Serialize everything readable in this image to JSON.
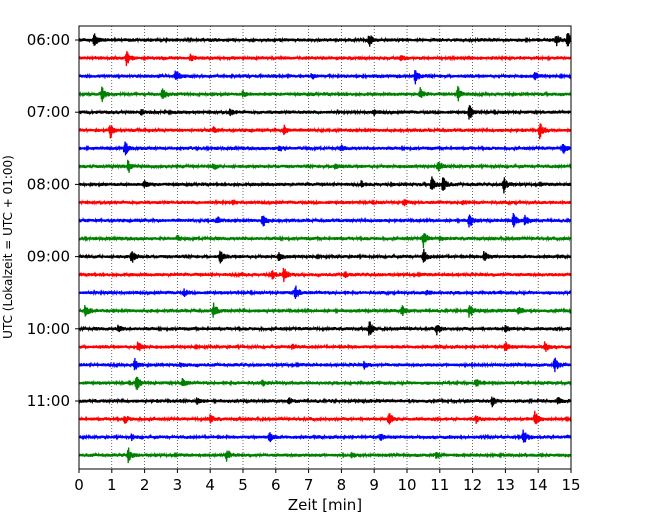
{
  "chart_data": {
    "type": "line",
    "title": "",
    "xlabel": "Zeit  [min]",
    "ylabel": "UTC (Lokalzeit = UTC + 01:00)",
    "xlim": [
      0,
      15
    ],
    "x_ticks": [
      "0",
      "1",
      "2",
      "3",
      "4",
      "5",
      "6",
      "7",
      "8",
      "9",
      "10",
      "11",
      "12",
      "13",
      "14",
      "15"
    ],
    "y_tick_labels": [
      "06:00",
      "07:00",
      "08:00",
      "09:00",
      "10:00",
      "11:00"
    ],
    "trace_interval_minutes": 15,
    "start_time": "06:00",
    "vertical_grid": true,
    "trace_colors": [
      "#000000",
      "#ff0000",
      "#0000ff",
      "#008000"
    ],
    "series": [
      {
        "time": "06:00",
        "events": [
          [
            0.45,
            1.0
          ],
          [
            8.85,
            0.8
          ],
          [
            14.55,
            0.7
          ],
          [
            14.9,
            1.0
          ]
        ]
      },
      {
        "time": "06:15",
        "events": [
          [
            1.45,
            0.9
          ],
          [
            3.4,
            0.35
          ],
          [
            9.8,
            0.3
          ]
        ]
      },
      {
        "time": "06:30",
        "events": [
          [
            2.95,
            0.8
          ],
          [
            10.25,
            1.0
          ],
          [
            13.9,
            0.5
          ],
          [
            7.1,
            0.3
          ]
        ]
      },
      {
        "time": "06:45",
        "events": [
          [
            0.7,
            0.9
          ],
          [
            2.55,
            0.9
          ],
          [
            10.4,
            0.7
          ],
          [
            11.55,
            1.0
          ],
          [
            5.0,
            0.35
          ]
        ]
      },
      {
        "time": "07:00",
        "events": [
          [
            4.6,
            0.4
          ],
          [
            11.9,
            1.0
          ],
          [
            9.0,
            0.3
          ],
          [
            1.9,
            0.3
          ]
        ]
      },
      {
        "time": "07:15",
        "events": [
          [
            0.95,
            1.0
          ],
          [
            6.25,
            0.6
          ],
          [
            14.05,
            1.0
          ],
          [
            4.1,
            0.4
          ]
        ]
      },
      {
        "time": "07:30",
        "events": [
          [
            1.4,
            1.0
          ],
          [
            6.1,
            0.4
          ],
          [
            14.75,
            0.9
          ],
          [
            8.0,
            0.3
          ]
        ]
      },
      {
        "time": "07:45",
        "events": [
          [
            1.5,
            0.9
          ],
          [
            10.95,
            1.0
          ],
          [
            4.1,
            0.4
          ],
          [
            7.8,
            0.35
          ]
        ]
      },
      {
        "time": "08:00",
        "events": [
          [
            10.75,
            1.0
          ],
          [
            11.1,
            1.0
          ],
          [
            12.95,
            1.0
          ],
          [
            2.0,
            0.4
          ],
          [
            8.6,
            0.4
          ]
        ]
      },
      {
        "time": "08:15",
        "events": [
          [
            4.7,
            0.35
          ],
          [
            9.9,
            0.4
          ],
          [
            11.7,
            0.3
          ]
        ]
      },
      {
        "time": "08:30",
        "events": [
          [
            5.6,
            0.9
          ],
          [
            11.9,
            1.0
          ],
          [
            13.25,
            0.9
          ],
          [
            13.6,
            0.7
          ],
          [
            4.2,
            0.5
          ]
        ]
      },
      {
        "time": "08:45",
        "events": [
          [
            10.5,
            1.0
          ],
          [
            11.0,
            0.35
          ],
          [
            3.0,
            0.3
          ]
        ]
      },
      {
        "time": "09:00",
        "events": [
          [
            1.6,
            1.0
          ],
          [
            4.3,
            0.8
          ],
          [
            10.5,
            1.0
          ],
          [
            12.35,
            0.7
          ],
          [
            6.1,
            0.5
          ]
        ]
      },
      {
        "time": "09:15",
        "events": [
          [
            6.25,
            1.0
          ],
          [
            5.9,
            0.5
          ],
          [
            8.1,
            0.35
          ]
        ]
      },
      {
        "time": "09:30",
        "events": [
          [
            6.6,
            0.9
          ],
          [
            3.2,
            0.4
          ],
          [
            10.6,
            0.35
          ]
        ]
      },
      {
        "time": "09:45",
        "events": [
          [
            0.2,
            1.0
          ],
          [
            4.1,
            1.0
          ],
          [
            9.85,
            0.7
          ],
          [
            11.9,
            1.0
          ],
          [
            13.4,
            0.6
          ]
        ]
      },
      {
        "time": "10:00",
        "events": [
          [
            8.85,
            1.0
          ],
          [
            10.9,
            0.7
          ],
          [
            13.0,
            0.4
          ],
          [
            1.2,
            0.4
          ]
        ]
      },
      {
        "time": "10:15",
        "events": [
          [
            1.8,
            0.7
          ],
          [
            13.0,
            0.6
          ],
          [
            14.2,
            0.7
          ],
          [
            6.5,
            0.35
          ]
        ]
      },
      {
        "time": "10:30",
        "events": [
          [
            1.7,
            0.8
          ],
          [
            14.5,
            0.9
          ],
          [
            8.7,
            0.4
          ],
          [
            3.1,
            0.35
          ]
        ]
      },
      {
        "time": "10:45",
        "events": [
          [
            1.75,
            1.0
          ],
          [
            3.15,
            0.6
          ],
          [
            12.1,
            0.5
          ],
          [
            5.6,
            0.35
          ]
        ]
      },
      {
        "time": "11:00",
        "events": [
          [
            12.6,
            0.6
          ],
          [
            3.6,
            0.5
          ],
          [
            6.4,
            0.4
          ],
          [
            14.6,
            0.4
          ]
        ]
      },
      {
        "time": "11:15",
        "events": [
          [
            9.45,
            1.0
          ],
          [
            13.9,
            1.0
          ],
          [
            1.4,
            0.5
          ],
          [
            4.0,
            0.5
          ],
          [
            12.1,
            0.4
          ]
        ]
      },
      {
        "time": "11:30",
        "events": [
          [
            5.8,
            0.6
          ],
          [
            13.55,
            1.0
          ],
          [
            1.6,
            0.35
          ],
          [
            9.2,
            0.35
          ]
        ]
      },
      {
        "time": "11:45",
        "events": [
          [
            1.5,
            1.0
          ],
          [
            4.5,
            0.8
          ],
          [
            8.3,
            0.4
          ],
          [
            10.9,
            0.35
          ]
        ]
      }
    ]
  }
}
